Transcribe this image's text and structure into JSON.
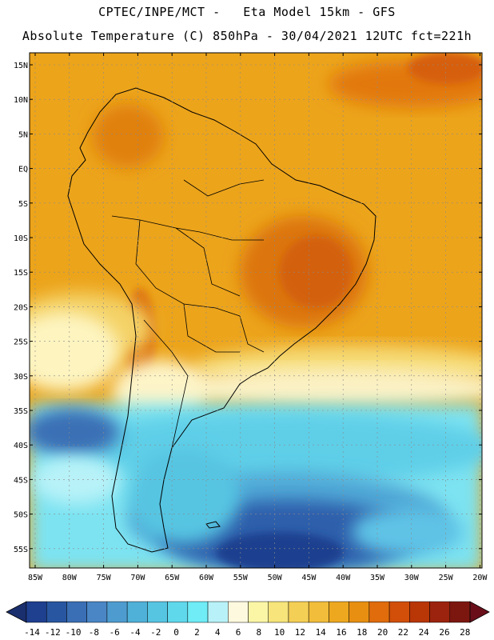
{
  "header": {
    "line1": "CPTEC/INPE/MCT -   Eta Model 15km - GFS",
    "line2": "Absolute Temperature (C) 850hPa - 30/04/2021 12UTC fct=221h"
  },
  "axes": {
    "lat_labels": [
      "15N",
      "10N",
      "5N",
      "EQ",
      "5S",
      "10S",
      "15S",
      "20S",
      "25S",
      "30S",
      "35S",
      "40S",
      "45S",
      "50S",
      "55S"
    ],
    "lon_labels": [
      "85W",
      "80W",
      "75W",
      "70W",
      "65W",
      "60W",
      "55W",
      "50W",
      "45W",
      "40W",
      "35W",
      "30W",
      "25W",
      "20W"
    ]
  },
  "colorbar": {
    "labels": [
      "-14",
      "-12",
      "-10",
      "-8",
      "-6",
      "-4",
      "-2",
      "0",
      "2",
      "4",
      "6",
      "8",
      "10",
      "12",
      "14",
      "16",
      "18",
      "20",
      "22",
      "24",
      "26",
      "28"
    ],
    "colors": [
      "#1f3f8f",
      "#2956a0",
      "#3a6fb5",
      "#4a86c5",
      "#4e9ccf",
      "#4fb1d8",
      "#56c5e2",
      "#5fd8ec",
      "#6fecf6",
      "#b8f2f8",
      "#fdf9de",
      "#fbf6a6",
      "#f7e47a",
      "#f4cf55",
      "#f1bd3a",
      "#eda81f",
      "#e88f12",
      "#e06c0c",
      "#d14f08",
      "#b93607",
      "#9c230d",
      "#7c1710"
    ]
  },
  "colors": {
    "base_warm": "#eca41b",
    "land_hot": "#dc7010",
    "ocean_cold": "#2a58a3"
  }
}
